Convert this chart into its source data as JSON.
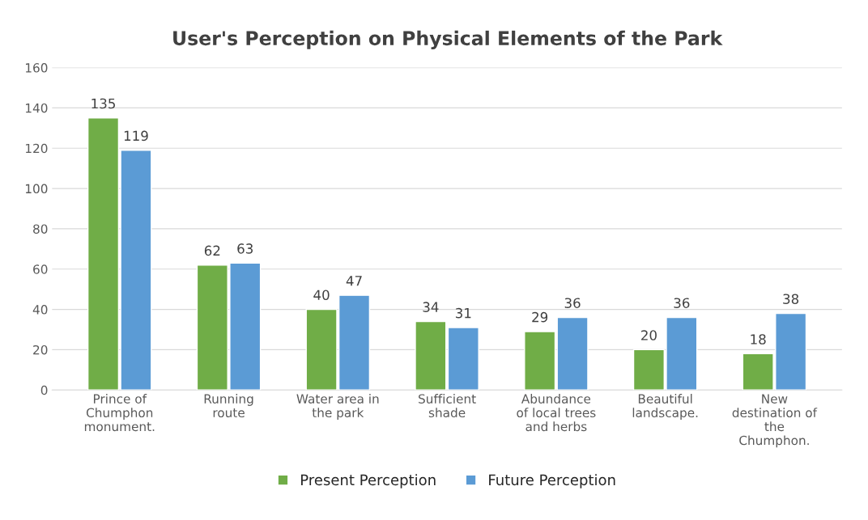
{
  "chart_data": {
    "type": "bar",
    "title": "User's Perception on Physical Elements of the Park",
    "categories": [
      "Prince of\nChumphon\nmonument.",
      "Running\nroute",
      "Water area in\nthe park",
      "Sufficient\nshade",
      "Abundance\nof local trees\nand herbs",
      "Beautiful\nlandscape.",
      "New\ndestination of\nthe\nChumphon."
    ],
    "series": [
      {
        "name": "Present Perception",
        "color": "#70ad47",
        "values": [
          135,
          62,
          40,
          34,
          29,
          20,
          18
        ]
      },
      {
        "name": "Future Perception",
        "color": "#5b9bd5",
        "values": [
          119,
          63,
          47,
          31,
          36,
          36,
          38
        ]
      }
    ],
    "ylim": [
      0,
      160
    ],
    "yticks": [
      0,
      20,
      40,
      60,
      80,
      100,
      120,
      140,
      160
    ],
    "grid": "y",
    "legend": "bottom",
    "data_labels": true
  }
}
